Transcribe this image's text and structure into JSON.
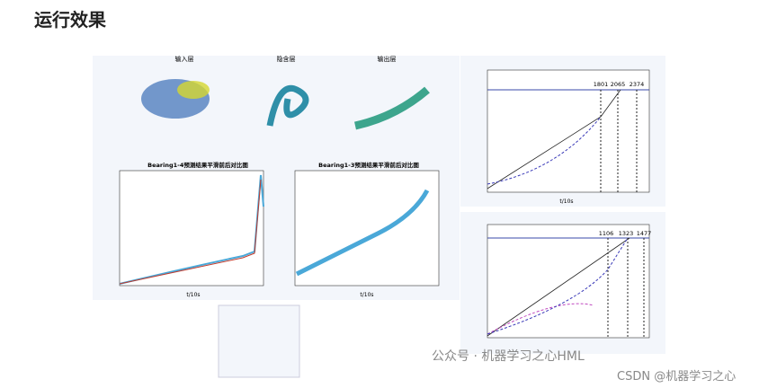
{
  "header": {
    "title": "运行效果"
  },
  "figures": {
    "top_titles": [
      "输入层",
      "隐含层",
      "输出层"
    ],
    "bearing14": {
      "title": "Bearing1-4预测结果平滑前后对比图",
      "xlabel": "t/10s"
    },
    "bearing13": {
      "title": "Bearing1-3预测结果平滑前后对比图",
      "xlabel": "t/10s"
    },
    "right_top": {
      "markers": [
        "1801",
        "2065",
        "2374"
      ],
      "xlabel": "t/10s"
    },
    "right_bottom": {
      "markers": [
        "1106",
        "1323",
        "1477"
      ]
    }
  },
  "watermarks": [
    "公众号 · 机器学习之心HML",
    "CSDN @机器学习之心"
  ]
}
